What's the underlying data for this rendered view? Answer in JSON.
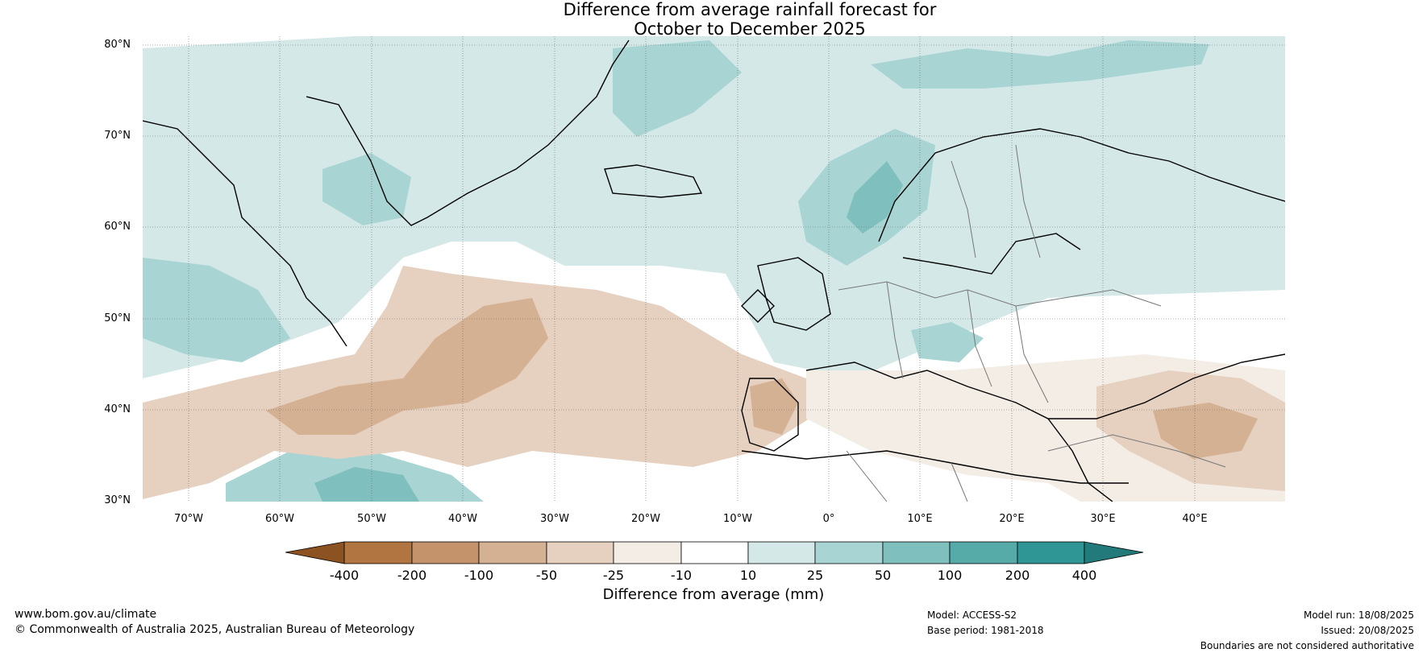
{
  "title": {
    "line1": "Difference from average rainfall forecast for",
    "line2": "October to December 2025"
  },
  "map": {
    "lat_labels": [
      "80°N",
      "70°N",
      "60°N",
      "50°N",
      "40°N",
      "30°N"
    ],
    "lon_labels": [
      "70°W",
      "60°W",
      "50°W",
      "40°W",
      "30°W",
      "20°W",
      "10°W",
      "0°",
      "10°E",
      "20°E",
      "30°E",
      "40°E"
    ]
  },
  "colorbar": {
    "ticks": [
      "-400",
      "-200",
      "-100",
      "-50",
      "-25",
      "-10",
      "10",
      "25",
      "50",
      "100",
      "200",
      "400"
    ],
    "colors": [
      "#8c5222",
      "#b07540",
      "#c4936b",
      "#d5b193",
      "#e6d0bf",
      "#f3ede6",
      "#ffffff",
      "#d4e8e8",
      "#a8d4d3",
      "#7fbfbe",
      "#56aaa8",
      "#2f9595",
      "#237a7a"
    ],
    "title": "Difference from average (mm)"
  },
  "footer": {
    "url": "www.bom.gov.au/climate",
    "copyright": "© Commonwealth of Australia 2025, Australian Bureau of Meteorology",
    "model": "Model: ACCESS-S2",
    "base_period": "Base period: 1981-2018",
    "model_run": "Model run: 18/08/2025",
    "issued": "Issued: 20/08/2025",
    "disclaimer": "Boundaries are not considered authoritative"
  }
}
